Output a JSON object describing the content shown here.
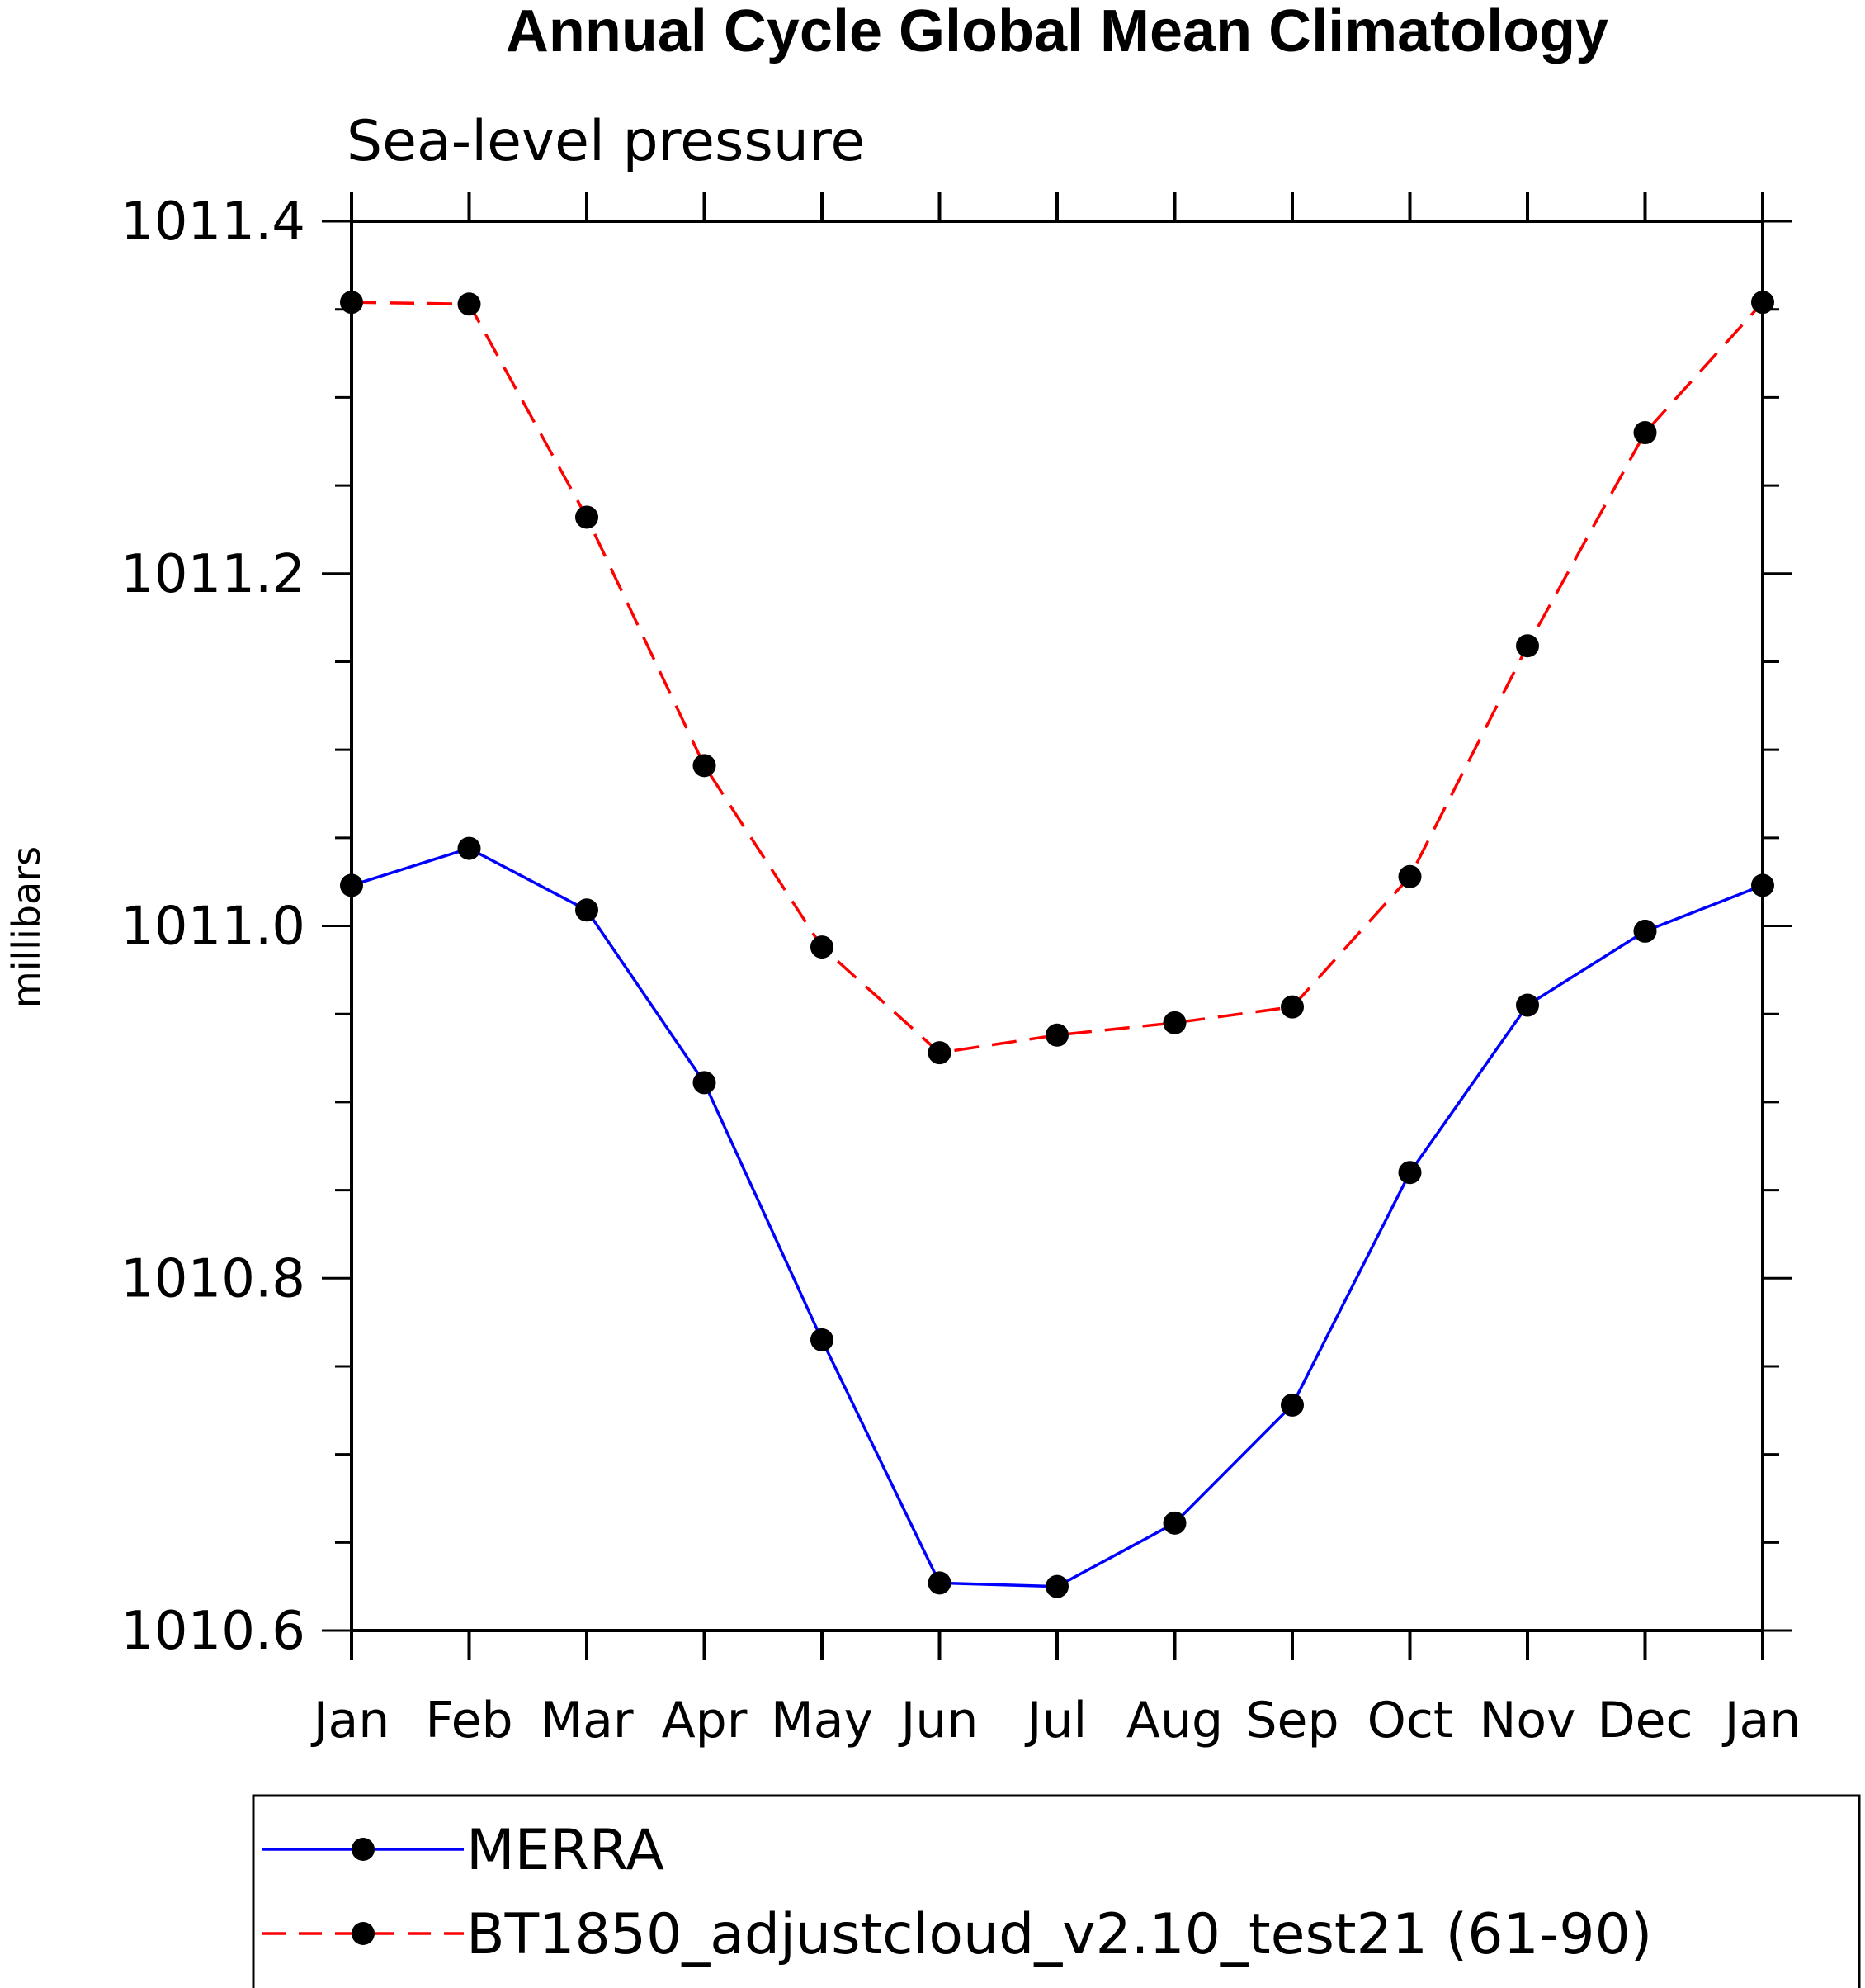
{
  "chart_data": {
    "type": "line",
    "title": "Annual Cycle Global Mean Climatology",
    "subtitle": "Sea-level pressure",
    "ylabel": "millibars",
    "xlabel": "",
    "categories": [
      "Jan",
      "Feb",
      "Mar",
      "Apr",
      "May",
      "Jun",
      "Jul",
      "Aug",
      "Sep",
      "Oct",
      "Nov",
      "Dec",
      "Jan"
    ],
    "ylim": [
      1010.6,
      1011.4
    ],
    "yticks": [
      1010.6,
      1010.8,
      1011.0,
      1011.2,
      1011.4
    ],
    "ytick_labels": [
      "1010.6",
      "1010.8",
      "1011.0",
      "1011.2",
      "1011.4"
    ],
    "yminor_step": 0.05,
    "grid": false,
    "legend_position": "bottom",
    "series": [
      {
        "name": "MERRA",
        "color": "#0000ff",
        "style": "solid",
        "marker": "filled-circle",
        "values": [
          1011.023,
          1011.044,
          1011.009,
          1010.911,
          1010.765,
          1010.627,
          1010.625,
          1010.661,
          1010.728,
          1010.86,
          1010.955,
          1010.997,
          1011.023
        ]
      },
      {
        "name": "BT1850_adjustcloud_v2.10_test21 (61-90)",
        "color": "#ff0000",
        "style": "dashed",
        "marker": "filled-circle",
        "values": [
          1011.354,
          1011.353,
          1011.232,
          1011.091,
          1010.988,
          1010.928,
          1010.938,
          1010.945,
          1010.954,
          1011.028,
          1011.159,
          1011.28,
          1011.354
        ]
      }
    ]
  }
}
